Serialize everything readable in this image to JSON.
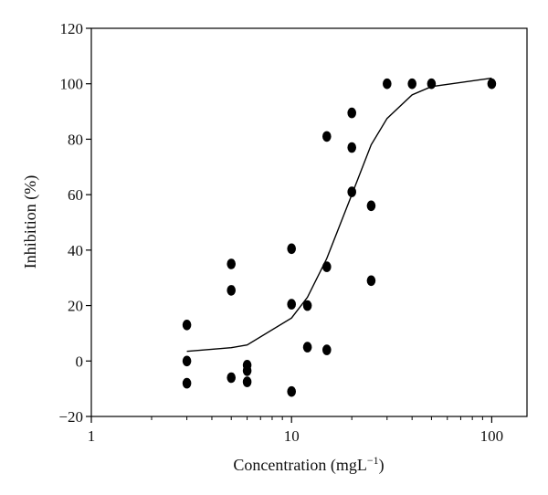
{
  "chart_data": {
    "type": "scatter",
    "xlabel": "Concentration (mgL",
    "xlabel_sup": "−1",
    "xlabel_close": ")",
    "ylabel": "Inhibition (%)",
    "xscale": "log",
    "xlim": [
      1,
      150
    ],
    "ylim": [
      -20,
      120
    ],
    "xticks": [
      1,
      10,
      100
    ],
    "xtick_labels": [
      "1",
      "10",
      "100"
    ],
    "yticks": [
      -20,
      0,
      20,
      40,
      60,
      80,
      100,
      120
    ],
    "ytick_labels": [
      "−20",
      "0",
      "20",
      "40",
      "60",
      "80",
      "100",
      "120"
    ],
    "grid": false,
    "series": [
      {
        "type": "scatter",
        "points": [
          {
            "x": 3,
            "y": 13
          },
          {
            "x": 3,
            "y": 0
          },
          {
            "x": 3,
            "y": -8
          },
          {
            "x": 5,
            "y": 35
          },
          {
            "x": 5,
            "y": 25.5
          },
          {
            "x": 5,
            "y": -6
          },
          {
            "x": 6,
            "y": -1.5
          },
          {
            "x": 6,
            "y": -3.5
          },
          {
            "x": 6,
            "y": -7.5
          },
          {
            "x": 10,
            "y": 40.5
          },
          {
            "x": 10,
            "y": 20.5
          },
          {
            "x": 10,
            "y": -11
          },
          {
            "x": 12,
            "y": 20
          },
          {
            "x": 12,
            "y": 5
          },
          {
            "x": 15,
            "y": 81
          },
          {
            "x": 15,
            "y": 34
          },
          {
            "x": 15,
            "y": 4
          },
          {
            "x": 20,
            "y": 89.5
          },
          {
            "x": 20,
            "y": 77
          },
          {
            "x": 20,
            "y": 61
          },
          {
            "x": 25,
            "y": 56
          },
          {
            "x": 25,
            "y": 29
          },
          {
            "x": 30,
            "y": 100
          },
          {
            "x": 40,
            "y": 100
          },
          {
            "x": 50,
            "y": 100
          },
          {
            "x": 100,
            "y": 100
          }
        ]
      },
      {
        "type": "line",
        "points": [
          {
            "x": 3,
            "y": 3.5
          },
          {
            "x": 5,
            "y": 4.8
          },
          {
            "x": 6,
            "y": 5.8
          },
          {
            "x": 10,
            "y": 15.5
          },
          {
            "x": 12,
            "y": 23
          },
          {
            "x": 15,
            "y": 37
          },
          {
            "x": 20,
            "y": 60
          },
          {
            "x": 25,
            "y": 78
          },
          {
            "x": 30,
            "y": 87.5
          },
          {
            "x": 40,
            "y": 96
          },
          {
            "x": 50,
            "y": 99
          },
          {
            "x": 100,
            "y": 102
          }
        ]
      }
    ]
  }
}
